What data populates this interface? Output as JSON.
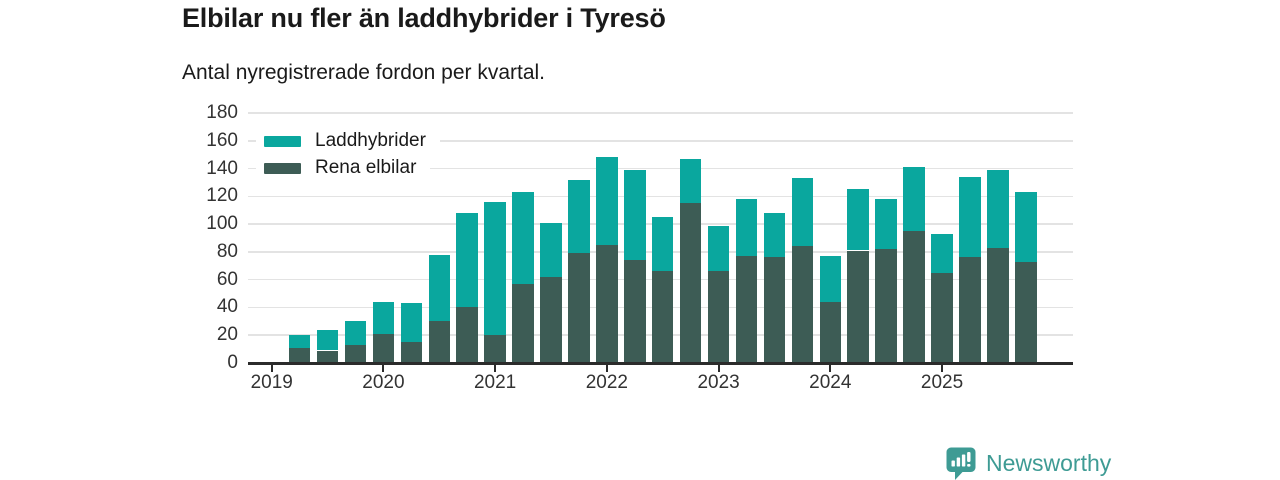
{
  "header": {
    "title": "Elbilar nu fler än laddhybrider i Tyresö",
    "subtitle": "Antal nyregistrerade fordon per kvartal."
  },
  "chart_data": {
    "type": "bar",
    "stacked": true,
    "title": "Elbilar nu fler än laddhybrider i Tyresö",
    "subtitle": "Antal nyregistrerade fordon per kvartal.",
    "categories": [
      "2019 K2",
      "2019 K3",
      "2019 K4",
      "2020 K1",
      "2020 K2",
      "2020 K3",
      "2020 K4",
      "2021 K1",
      "2021 K2",
      "2021 K3",
      "2021 K4",
      "2022 K1",
      "2022 K2",
      "2022 K3",
      "2022 K4",
      "2023 K1",
      "2023 K2",
      "2023 K3",
      "2023 K4",
      "2024 K1",
      "2024 K2",
      "2024 K3",
      "2024 K4",
      "2025 K1",
      "2025 K2",
      "2025 K3",
      "2025 K4"
    ],
    "series": [
      {
        "name": "Laddhybrider",
        "color": "#0aa79e",
        "values": [
          9,
          15,
          17,
          23,
          28,
          48,
          68,
          96,
          66,
          39,
          53,
          63,
          65,
          39,
          32,
          33,
          41,
          32,
          49,
          33,
          44,
          36,
          46,
          28,
          58,
          56,
          50
        ]
      },
      {
        "name": "Rena elbilar",
        "color": "#3d5c55",
        "values": [
          11,
          9,
          13,
          21,
          15,
          30,
          40,
          20,
          57,
          62,
          79,
          85,
          74,
          66,
          115,
          66,
          77,
          76,
          84,
          44,
          81,
          82,
          95,
          65,
          76,
          83,
          73
        ]
      }
    ],
    "stack_order": [
      "Rena elbilar",
      "Laddhybrider"
    ],
    "ylim": [
      0,
      180
    ],
    "ytick_step": 20,
    "xticks": [
      "2019",
      "2020",
      "2021",
      "2022",
      "2023",
      "2024",
      "2025"
    ],
    "legend_position": "top-left",
    "grid": "horizontal"
  },
  "footer": {
    "brand": "Newsworthy",
    "brand_color": "#3e9b94",
    "logo_icon": "newsworthy-bar-chart-pin-icon"
  }
}
